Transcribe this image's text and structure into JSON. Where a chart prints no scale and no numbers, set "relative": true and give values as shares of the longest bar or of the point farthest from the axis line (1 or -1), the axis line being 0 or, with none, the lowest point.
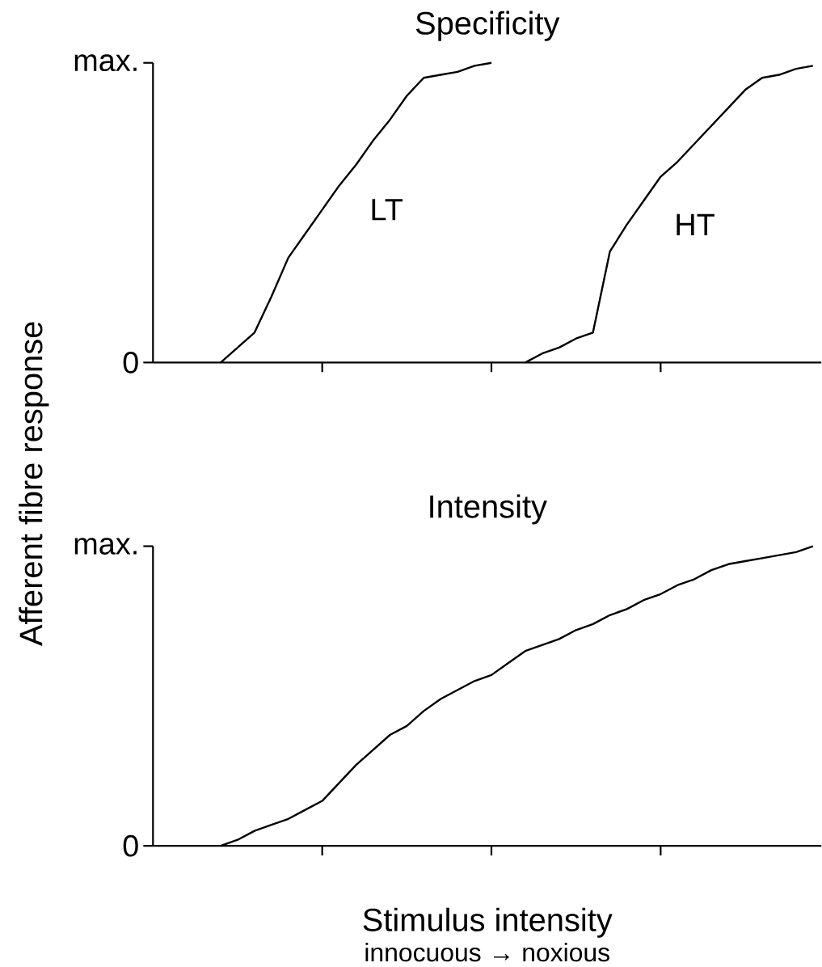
{
  "chart_data": [
    {
      "type": "line",
      "title": "Specificity",
      "ylabel": "Afferent fibre response",
      "categories": [
        null,
        null,
        null,
        null,
        null,
        null,
        null,
        null,
        null,
        null,
        null,
        null,
        null,
        null,
        null,
        null,
        null,
        null,
        null,
        null,
        null,
        null,
        null,
        null,
        null,
        null,
        null,
        null,
        null,
        null,
        null,
        null,
        null,
        null,
        null,
        null,
        null,
        null,
        null,
        null
      ],
      "series": [
        {
          "name": "LT",
          "color": "#000000",
          "values": [
            null,
            null,
            null,
            null,
            0,
            0.05,
            0.1,
            0.22,
            0.35,
            0.43,
            0.51,
            0.59,
            0.66,
            0.74,
            0.81,
            0.89,
            0.95,
            0.96,
            0.97,
            0.99,
            1.0,
            null,
            null,
            null,
            null,
            null,
            null,
            null,
            null,
            null,
            null,
            null,
            null,
            null,
            null,
            null,
            null,
            null,
            null,
            null
          ]
        },
        {
          "name": "HT",
          "color": "#000000",
          "values": [
            null,
            null,
            null,
            null,
            null,
            null,
            null,
            null,
            null,
            null,
            null,
            null,
            null,
            null,
            null,
            null,
            null,
            null,
            null,
            null,
            null,
            null,
            0,
            0.03,
            0.05,
            0.08,
            0.1,
            0.37,
            0.46,
            0.54,
            0.62,
            0.67,
            0.73,
            0.79,
            0.85,
            0.91,
            0.95,
            0.96,
            0.98,
            0.99
          ]
        }
      ],
      "relative": true,
      "annotations": [
        "max.",
        "0"
      ]
    },
    {
      "type": "line",
      "title": "Intensity",
      "xlabel": "Stimulus intensity",
      "categories": [
        null,
        null,
        null,
        null,
        null,
        null,
        null,
        null,
        null,
        null,
        null,
        null,
        null,
        null,
        null,
        null,
        null,
        null,
        null,
        null,
        null,
        null,
        null,
        null,
        null,
        null,
        null,
        null,
        null,
        null,
        null,
        null,
        null,
        null,
        null,
        null,
        null,
        null,
        null,
        null
      ],
      "series": [
        {
          "color": "#000000",
          "values": [
            null,
            null,
            null,
            null,
            0,
            0.02,
            0.05,
            0.07,
            0.09,
            0.12,
            0.15,
            0.21,
            0.27,
            0.32,
            0.37,
            0.4,
            0.45,
            0.49,
            0.52,
            0.55,
            0.57,
            0.61,
            0.65,
            0.67,
            0.69,
            0.72,
            0.74,
            0.77,
            0.79,
            0.82,
            0.84,
            0.87,
            0.89,
            0.92,
            0.94,
            0.95,
            0.96,
            0.97,
            0.98,
            1.0
          ]
        }
      ],
      "relative": true,
      "annotations": [
        "max.",
        "0",
        "innocuous → noxious"
      ]
    }
  ]
}
